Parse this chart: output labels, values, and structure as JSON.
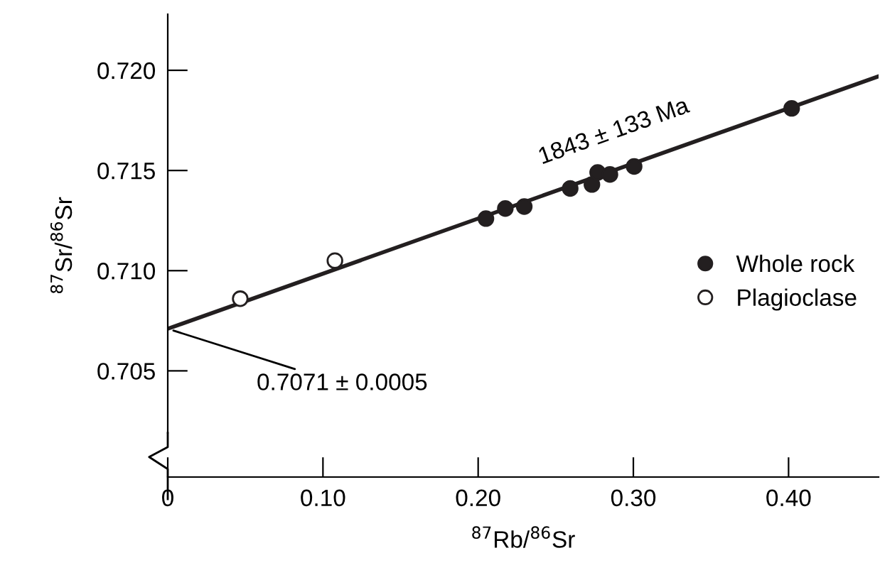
{
  "chart_data": {
    "type": "scatter",
    "xlabel": "$^{87}$Rb/$^{86}$Sr",
    "ylabel": "$^{87}$Sr/$^{86}$Sr",
    "xlim": [
      0,
      0.458
    ],
    "ylim": [
      0.6997,
      0.7228
    ],
    "xticks": [
      0,
      {
        "value": 0.1,
        "label": "0.10"
      },
      {
        "value": 0.2,
        "label": "0.20"
      },
      {
        "value": 0.3,
        "label": "0.30"
      },
      {
        "value": 0.4,
        "label": "0.40"
      }
    ],
    "yticks": [
      0.705,
      {
        "value": 0.71,
        "label": "0.710"
      },
      0.715,
      {
        "value": 0.72,
        "label": "0.720"
      }
    ],
    "grid": false,
    "legend": "right",
    "series": [
      {
        "name": "Whole rock",
        "color": "#231f20",
        "marker": "circle",
        "x": [
          0.205,
          0.2175,
          0.2297,
          0.2593,
          0.2733,
          0.277,
          0.2849,
          0.3005,
          0.402
        ],
        "values": [
          0.7126,
          0.7131,
          0.7132,
          0.7141,
          0.7143,
          0.7149,
          0.7148,
          0.7152,
          0.7181
        ]
      },
      {
        "name": "Plagioclase",
        "color": "#ffffff",
        "marker": "circle",
        "x": [
          0.0467,
          0.1077
        ],
        "values": [
          0.7086,
          0.7105
        ]
      },
      {
        "type": "line",
        "color": "#231f20",
        "marker": "none",
        "x": [
          0,
          0.458
        ],
        "values": [
          0.7071,
          0.7197
        ]
      }
    ],
    "annotations": [
      {
        "text": "1843 ± 133 Ma",
        "x": 0.3,
        "y": 0.7154
      },
      {
        "text": "0.7071 ± 0.0005",
        "x": 0,
        "y": 0.7071
      }
    ]
  }
}
